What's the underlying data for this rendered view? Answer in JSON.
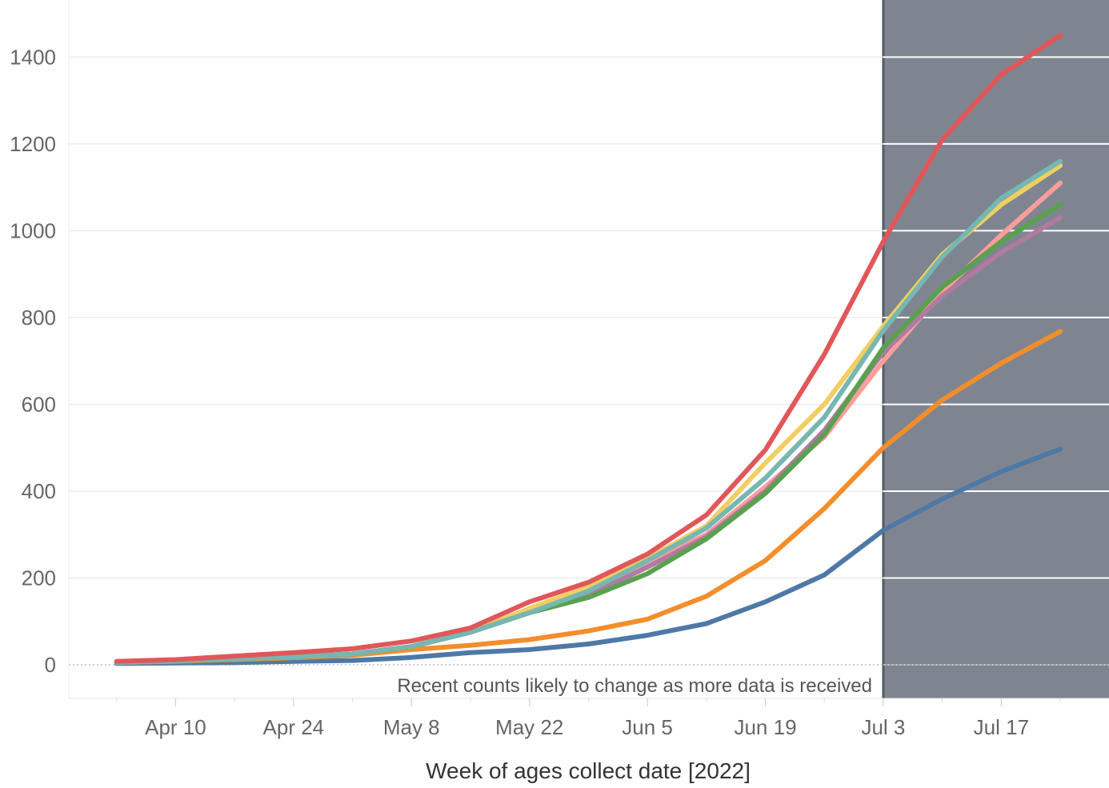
{
  "chart_data": {
    "type": "line",
    "title": "",
    "xlabel": "Week of ages collect date [2022]",
    "ylabel": "",
    "ylim": [
      -80,
      1520
    ],
    "y_ticks": [
      0,
      200,
      400,
      600,
      800,
      1000,
      1200,
      1400
    ],
    "y_tick_labels": [
      "0",
      "200",
      "400",
      "600",
      "800",
      "1000",
      "1200",
      "1400"
    ],
    "x_range": [
      "2022-03-27",
      "2022-08-01"
    ],
    "x_ticks": [
      "2022-04-10",
      "2022-04-24",
      "2022-05-08",
      "2022-05-22",
      "2022-06-05",
      "2022-06-19",
      "2022-07-03",
      "2022-07-17"
    ],
    "x_tick_labels": [
      "Apr 10",
      "Apr 24",
      "May 8",
      "May 22",
      "Jun 5",
      "Jun 19",
      "Jul 3",
      "Jul 17"
    ],
    "grid": true,
    "x": [
      "2022-04-03",
      "2022-04-10",
      "2022-04-17",
      "2022-04-24",
      "2022-05-01",
      "2022-05-08",
      "2022-05-15",
      "2022-05-22",
      "2022-05-29",
      "2022-06-05",
      "2022-06-12",
      "2022-06-19",
      "2022-06-26",
      "2022-07-03",
      "2022-07-10",
      "2022-07-17",
      "2022-07-24"
    ],
    "shaded_region": {
      "start": "2022-07-03",
      "end": "2022-08-01",
      "color": "#7f8590",
      "note": "Recent counts likely to change as more data is received"
    },
    "series": [
      {
        "color": "#4e79a7",
        "values": [
          3,
          4,
          5,
          8,
          10,
          17,
          28,
          35,
          48,
          68,
          95,
          145,
          207,
          310,
          382,
          445,
          497
        ]
      },
      {
        "color": "#f28e2b",
        "values": [
          5,
          8,
          12,
          16,
          22,
          35,
          45,
          58,
          78,
          105,
          158,
          240,
          360,
          500,
          610,
          695,
          768
        ]
      },
      {
        "color": "#f1ce63",
        "values": [
          5,
          9,
          14,
          18,
          25,
          42,
          75,
          130,
          180,
          245,
          320,
          465,
          600,
          780,
          945,
          1060,
          1150
        ]
      },
      {
        "color": "#ff9d9a",
        "values": [
          5,
          9,
          14,
          18,
          25,
          42,
          75,
          120,
          165,
          235,
          300,
          410,
          525,
          700,
          860,
          990,
          1110
        ]
      },
      {
        "color": "#b07aa1",
        "values": [
          5,
          9,
          14,
          18,
          25,
          42,
          75,
          120,
          160,
          225,
          295,
          400,
          540,
          720,
          850,
          950,
          1030
        ]
      },
      {
        "color": "#59a14f",
        "values": [
          5,
          9,
          14,
          18,
          25,
          42,
          75,
          120,
          155,
          210,
          290,
          395,
          530,
          730,
          870,
          975,
          1060
        ]
      },
      {
        "color": "#76b7b2",
        "values": [
          5,
          9,
          14,
          18,
          25,
          42,
          75,
          120,
          170,
          240,
          315,
          430,
          570,
          770,
          940,
          1075,
          1160
        ]
      },
      {
        "color": "#e15759",
        "values": [
          8,
          12,
          20,
          28,
          37,
          55,
          85,
          145,
          190,
          255,
          345,
          495,
          715,
          975,
          1210,
          1360,
          1450
        ]
      }
    ]
  }
}
